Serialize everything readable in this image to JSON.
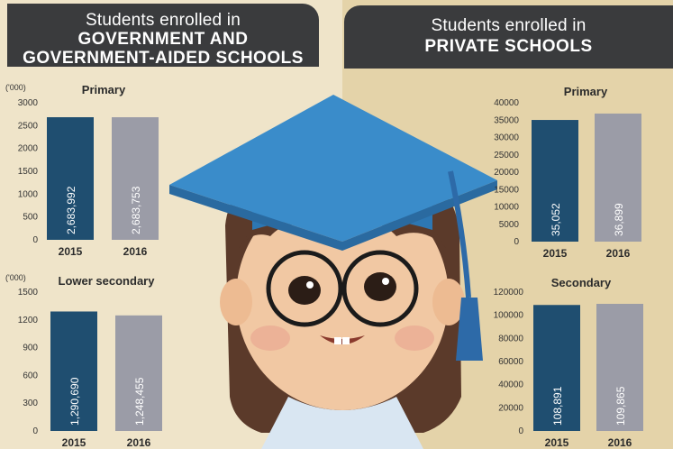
{
  "colors": {
    "bar_2015": "#1f4e70",
    "bar_2016": "#9b9ca7",
    "header_bg": "#3a3b3d",
    "left_bg": "#efe4c9",
    "right_bg": "#e4d3a9"
  },
  "header_left": {
    "line1": "Students enrolled in",
    "line2": "GOVERNMENT AND",
    "line3": "GOVERNMENT-AIDED SCHOOLS"
  },
  "header_right": {
    "line1": "Students enrolled in",
    "line2": "PRIVATE SCHOOLS"
  },
  "illustration": {
    "name": "graduate-girl-illustration"
  },
  "chart_data": [
    {
      "type": "bar",
      "title": "Primary",
      "unit_label": "('000)",
      "categories": [
        "2015",
        "2016"
      ],
      "values": [
        2683.992,
        2683.753
      ],
      "value_labels": [
        "2,683,992",
        "2,683,753"
      ],
      "yticks": [
        0,
        500,
        1000,
        1500,
        2000,
        2500,
        3000
      ],
      "ylim": [
        0,
        3000
      ]
    },
    {
      "type": "bar",
      "title": "Lower secondary",
      "unit_label": "('000)",
      "categories": [
        "2015",
        "2016"
      ],
      "values": [
        1290.69,
        1248.455
      ],
      "value_labels": [
        "1,290,690",
        "1,248,455"
      ],
      "yticks": [
        0,
        300,
        600,
        900,
        1200,
        1500
      ],
      "ylim": [
        0,
        1500
      ]
    },
    {
      "type": "bar",
      "title": "Primary",
      "unit_label": "",
      "categories": [
        "2015",
        "2016"
      ],
      "values": [
        35052,
        36899
      ],
      "value_labels": [
        "35,052",
        "36,899"
      ],
      "yticks": [
        0,
        5000,
        10000,
        15000,
        20000,
        25000,
        30000,
        35000,
        40000
      ],
      "ylim": [
        0,
        40000
      ]
    },
    {
      "type": "bar",
      "title": "Secondary",
      "unit_label": "",
      "categories": [
        "2015",
        "2016"
      ],
      "values": [
        108891,
        109865
      ],
      "value_labels": [
        "108,891",
        "109,865"
      ],
      "yticks": [
        0,
        20000,
        40000,
        60000,
        80000,
        100000,
        120000
      ],
      "ylim": [
        0,
        120000
      ]
    }
  ]
}
